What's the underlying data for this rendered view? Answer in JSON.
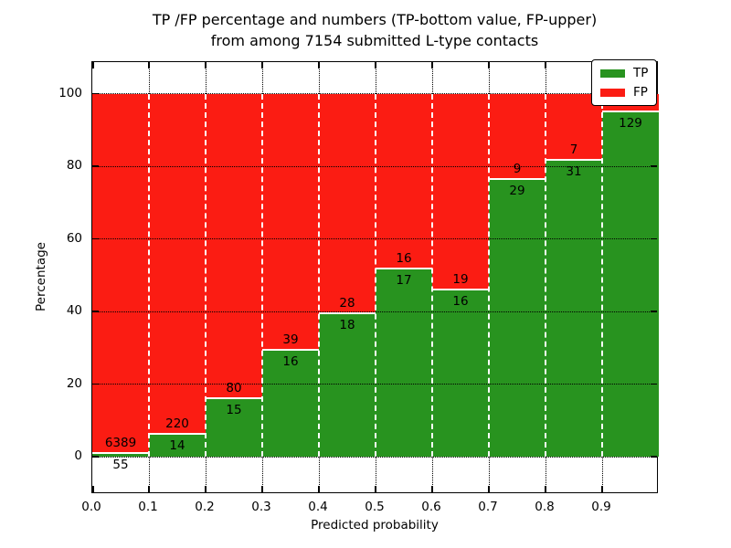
{
  "figure": {
    "title_line1": "TP /FP percentage and numbers (TP-bottom value, FP-upper)",
    "title_line2": "from among 7154 submitted L-type contacts",
    "xlabel": "Predicted probability",
    "ylabel": "Percentage"
  },
  "legend": {
    "position": "upper right",
    "items": [
      {
        "label": "TP",
        "color": "#28931f"
      },
      {
        "label": "FP",
        "color": "#fb1c13"
      }
    ]
  },
  "chart_data": {
    "type": "bar",
    "stacked": true,
    "title": "TP /FP percentage and numbers (TP-bottom value, FP-upper) from among 7154 submitted L-type contacts",
    "xlabel": "Predicted probability",
    "ylabel": "Percentage",
    "total_submitted": 7154,
    "grid": true,
    "xlim": [
      0.0,
      1.0
    ],
    "ylim": [
      -10.3,
      108.8
    ],
    "xticks": [
      "0.0",
      "0.1",
      "0.2",
      "0.3",
      "0.4",
      "0.5",
      "0.6",
      "0.7",
      "0.8",
      "0.9"
    ],
    "yticks": [
      0,
      20,
      40,
      60,
      80,
      100
    ],
    "categories": [
      "0.0-0.1",
      "0.1-0.2",
      "0.2-0.3",
      "0.3-0.4",
      "0.4-0.5",
      "0.5-0.6",
      "0.6-0.7",
      "0.7-0.8",
      "0.8-0.9",
      "0.9-1.0"
    ],
    "series": [
      {
        "name": "TP",
        "color": "#28931f",
        "counts": [
          55,
          14,
          15,
          16,
          18,
          17,
          16,
          29,
          31,
          129
        ]
      },
      {
        "name": "FP",
        "color": "#fb1c13",
        "counts": [
          6389,
          220,
          80,
          39,
          28,
          16,
          19,
          9,
          7,
          null
        ]
      }
    ],
    "tp_percent": [
      0.85,
      5.98,
      15.79,
      29.09,
      39.13,
      51.52,
      45.71,
      76.32,
      81.58,
      94.85
    ],
    "bar_labels": {
      "tp": [
        "55",
        "14",
        "15",
        "16",
        "18",
        "17",
        "16",
        "29",
        "31",
        "129"
      ],
      "fp": [
        "6389",
        "220",
        "80",
        "39",
        "28",
        "16",
        "19",
        "9",
        "7",
        null
      ],
      "note": "FP count label of the last bar is hidden behind the legend box"
    }
  }
}
